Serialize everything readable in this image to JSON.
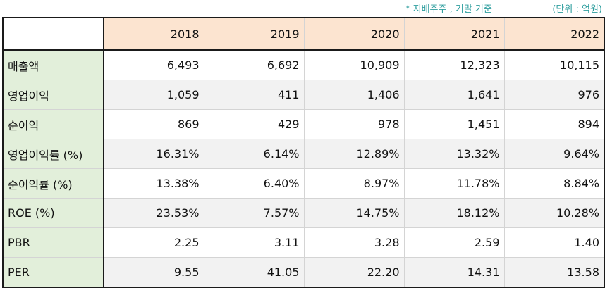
{
  "notes": {
    "basis": "* 지배주주 , 기말 기준",
    "unit": "(단위 : 억원)"
  },
  "table": {
    "years": [
      "2018",
      "2019",
      "2020",
      "2021",
      "2022"
    ],
    "rows": [
      {
        "label": "매출액",
        "values": [
          "6,493",
          "6,692",
          "10,909",
          "12,323",
          "10,115"
        ]
      },
      {
        "label": "영업이익",
        "values": [
          "1,059",
          "411",
          "1,406",
          "1,641",
          "976"
        ]
      },
      {
        "label": "순이익",
        "values": [
          "869",
          "429",
          "978",
          "1,451",
          "894"
        ]
      },
      {
        "label": "영업이익률 (%)",
        "values": [
          "16.31%",
          "6.14%",
          "12.89%",
          "13.32%",
          "9.64%"
        ]
      },
      {
        "label": "순이익률 (%)",
        "values": [
          "13.38%",
          "6.40%",
          "8.97%",
          "11.78%",
          "8.84%"
        ]
      },
      {
        "label": "ROE (%)",
        "values": [
          "23.53%",
          "7.57%",
          "14.75%",
          "18.12%",
          "10.28%"
        ]
      },
      {
        "label": "PBR",
        "values": [
          "2.25",
          "3.11",
          "3.28",
          "2.59",
          "1.40"
        ]
      },
      {
        "label": "PER",
        "values": [
          "9.55",
          "41.05",
          "22.20",
          "14.31",
          "13.58"
        ]
      }
    ]
  }
}
